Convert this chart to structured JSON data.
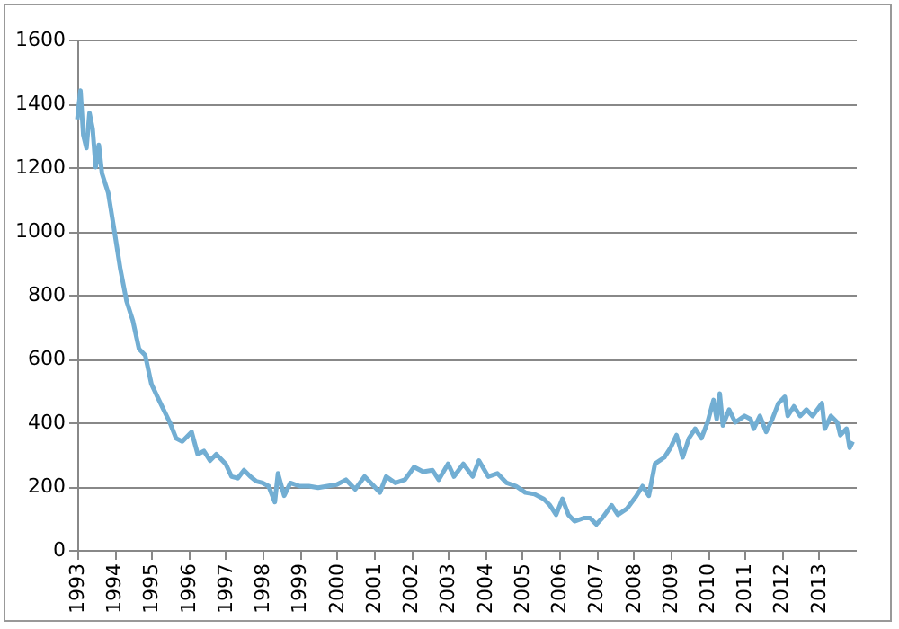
{
  "chart_data": {
    "type": "line",
    "x": [
      "1993-01",
      "1993-02",
      "1993-03",
      "1993-04",
      "1993-05",
      "1993-06",
      "1993-07",
      "1993-08",
      "1993-09",
      "1993-11",
      "1994-01",
      "1994-03",
      "1994-05",
      "1994-07",
      "1994-09",
      "1994-11",
      "1995-01",
      "1995-03",
      "1995-05",
      "1995-07",
      "1995-09",
      "1995-11",
      "1996-02",
      "1996-04",
      "1996-06",
      "1996-08",
      "1996-10",
      "1997-01",
      "1997-03",
      "1997-05",
      "1997-07",
      "1997-09",
      "1997-11",
      "1998-01",
      "1998-03",
      "1998-05",
      "1998-06",
      "1998-08",
      "1998-10",
      "1999-01",
      "1999-04",
      "1999-07",
      "1999-10",
      "2000-01",
      "2000-04",
      "2000-07",
      "2000-10",
      "2001-01",
      "2001-03",
      "2001-05",
      "2001-08",
      "2001-11",
      "2002-02",
      "2002-05",
      "2002-08",
      "2002-10",
      "2003-01",
      "2003-03",
      "2003-06",
      "2003-09",
      "2003-11",
      "2004-02",
      "2004-05",
      "2004-08",
      "2004-11",
      "2005-02",
      "2005-05",
      "2005-08",
      "2005-10",
      "2005-12",
      "2006-02",
      "2006-04",
      "2006-06",
      "2006-09",
      "2006-11",
      "2007-01",
      "2007-03",
      "2007-06",
      "2007-08",
      "2007-11",
      "2008-02",
      "2008-04",
      "2008-06",
      "2008-08",
      "2008-11",
      "2009-01",
      "2009-03",
      "2009-05",
      "2009-07",
      "2009-09",
      "2009-11",
      "2010-01",
      "2010-03",
      "2010-04",
      "2010-05",
      "2010-06",
      "2010-08",
      "2010-10",
      "2011-01",
      "2011-03",
      "2011-04",
      "2011-06",
      "2011-08",
      "2011-10",
      "2011-12",
      "2012-02",
      "2012-03",
      "2012-05",
      "2012-07",
      "2012-09",
      "2012-11",
      "2013-02",
      "2013-03",
      "2013-05",
      "2013-07",
      "2013-08",
      "2013-10",
      "2013-11",
      "2013-12"
    ],
    "series": [
      {
        "color": "#72aed3",
        "values": [
          1350,
          1440,
          1300,
          1260,
          1370,
          1320,
          1200,
          1270,
          1180,
          1120,
          1000,
          880,
          780,
          720,
          630,
          610,
          520,
          480,
          440,
          400,
          350,
          340,
          370,
          300,
          310,
          280,
          300,
          270,
          230,
          225,
          250,
          230,
          215,
          210,
          200,
          150,
          240,
          170,
          210,
          200,
          200,
          195,
          200,
          205,
          220,
          190,
          230,
          200,
          180,
          230,
          210,
          220,
          260,
          245,
          250,
          220,
          270,
          230,
          270,
          230,
          280,
          230,
          240,
          210,
          200,
          180,
          175,
          160,
          140,
          110,
          160,
          110,
          90,
          100,
          100,
          80,
          100,
          140,
          110,
          130,
          170,
          200,
          170,
          270,
          290,
          320,
          360,
          290,
          350,
          380,
          350,
          400,
          470,
          410,
          490,
          390,
          440,
          400,
          420,
          410,
          380,
          420,
          370,
          410,
          460,
          480,
          420,
          450,
          420,
          440,
          420,
          460,
          380,
          420,
          400,
          360,
          380,
          320,
          340
        ]
      }
    ],
    "xlim": [
      "1993-01",
      "2014-01"
    ],
    "xticks": [
      {
        "value": "1993",
        "label": "1993"
      },
      {
        "value": "1994",
        "label": "1994"
      },
      {
        "value": "1995",
        "label": "1995"
      },
      {
        "value": "1996",
        "label": "1996"
      },
      {
        "value": "1997",
        "label": "1997"
      },
      {
        "value": "1998",
        "label": "1998"
      },
      {
        "value": "1999",
        "label": "1999"
      },
      {
        "value": "2000",
        "label": "2000"
      },
      {
        "value": "2001",
        "label": "2001"
      },
      {
        "value": "2002",
        "label": "2002"
      },
      {
        "value": "2003",
        "label": "2003"
      },
      {
        "value": "2004",
        "label": "2004"
      },
      {
        "value": "2005",
        "label": "2005"
      },
      {
        "value": "2006",
        "label": "2006"
      },
      {
        "value": "2007",
        "label": "2007"
      },
      {
        "value": "2008",
        "label": "2008"
      },
      {
        "value": "2009",
        "label": "2009"
      },
      {
        "value": "2010",
        "label": "2010"
      },
      {
        "value": "2011",
        "label": "2011"
      },
      {
        "value": "2012",
        "label": "2012"
      },
      {
        "value": "2013",
        "label": "2013"
      }
    ],
    "ylim": [
      0,
      1600
    ],
    "yticks": [
      0,
      200,
      400,
      600,
      800,
      1000,
      1200,
      1400,
      1600
    ],
    "grid": "y",
    "marker": "none",
    "line_style": "solid"
  }
}
